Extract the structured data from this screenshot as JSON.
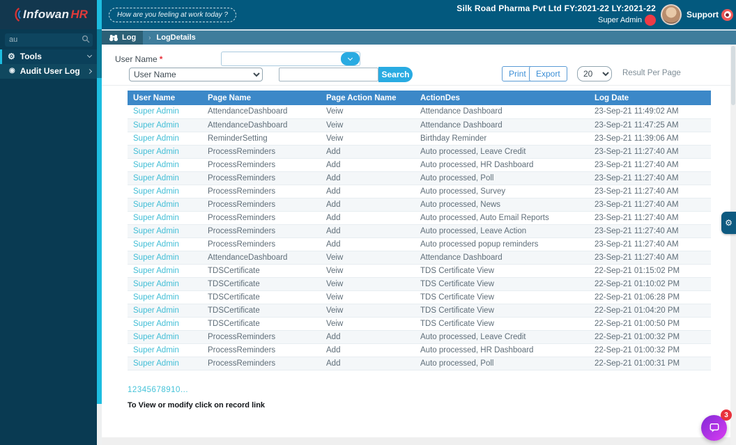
{
  "header": {
    "logo_main": "Infowan",
    "logo_accent": "HR",
    "feeling_button": "How are you feeling at work today ?",
    "company_line": "Silk Road Pharma Pvt Ltd FY:2021-22 LY:2021-22",
    "user_name": "Super Admin",
    "support_label": "Support"
  },
  "sidebar": {
    "search_value": "au",
    "tools_label": "Tools",
    "audit_label": "Audit User Log"
  },
  "breadcrumb": {
    "root": "Log",
    "current": "LogDetails"
  },
  "filters": {
    "user_name_label": "User Name",
    "required_mark": "*",
    "search_by_selected": "User Name",
    "search_button": "Search",
    "print_button": "Print",
    "export_button": "Export",
    "page_size": "20",
    "result_per_page_label": "Result Per Page"
  },
  "table": {
    "columns": [
      "User Name",
      "Page Name",
      "Page Action Name",
      "ActionDes",
      "Log Date"
    ],
    "rows": [
      [
        "Super Admin",
        "AttendanceDashboard",
        "Veiw",
        "Attendance Dashboard",
        "23-Sep-21 11:49:02 AM"
      ],
      [
        "Super Admin",
        "AttendanceDashboard",
        "Veiw",
        "Attendance Dashboard",
        "23-Sep-21 11:47:25 AM"
      ],
      [
        "Super Admin",
        "ReminderSetting",
        "Veiw",
        "Birthday Reminder",
        "23-Sep-21 11:39:06 AM"
      ],
      [
        "Super Admin",
        "ProcessReminders",
        "Add",
        "Auto processed, Leave Credit",
        "23-Sep-21 11:27:40 AM"
      ],
      [
        "Super Admin",
        "ProcessReminders",
        "Add",
        "Auto processed, HR Dashboard",
        "23-Sep-21 11:27:40 AM"
      ],
      [
        "Super Admin",
        "ProcessReminders",
        "Add",
        "Auto processed, Poll",
        "23-Sep-21 11:27:40 AM"
      ],
      [
        "Super Admin",
        "ProcessReminders",
        "Add",
        "Auto processed, Survey",
        "23-Sep-21 11:27:40 AM"
      ],
      [
        "Super Admin",
        "ProcessReminders",
        "Add",
        "Auto processed, News",
        "23-Sep-21 11:27:40 AM"
      ],
      [
        "Super Admin",
        "ProcessReminders",
        "Add",
        "Auto processed, Auto Email Reports",
        "23-Sep-21 11:27:40 AM"
      ],
      [
        "Super Admin",
        "ProcessReminders",
        "Add",
        "Auto processed, Leave Action",
        "23-Sep-21 11:27:40 AM"
      ],
      [
        "Super Admin",
        "ProcessReminders",
        "Add",
        "Auto processed popup reminders",
        "23-Sep-21 11:27:40 AM"
      ],
      [
        "Super Admin",
        "AttendanceDashboard",
        "Veiw",
        "Attendance Dashboard",
        "23-Sep-21 11:27:40 AM"
      ],
      [
        "Super Admin",
        "TDSCertificate",
        "Veiw",
        "TDS Certificate View",
        "22-Sep-21 01:15:02 PM"
      ],
      [
        "Super Admin",
        "TDSCertificate",
        "Veiw",
        "TDS Certificate View",
        "22-Sep-21 01:10:02 PM"
      ],
      [
        "Super Admin",
        "TDSCertificate",
        "Veiw",
        "TDS Certificate View",
        "22-Sep-21 01:06:28 PM"
      ],
      [
        "Super Admin",
        "TDSCertificate",
        "Veiw",
        "TDS Certificate View",
        "22-Sep-21 01:04:20 PM"
      ],
      [
        "Super Admin",
        "TDSCertificate",
        "Veiw",
        "TDS Certificate View",
        "22-Sep-21 01:00:50 PM"
      ],
      [
        "Super Admin",
        "ProcessReminders",
        "Add",
        "Auto processed, Leave Credit",
        "22-Sep-21 01:00:32 PM"
      ],
      [
        "Super Admin",
        "ProcessReminders",
        "Add",
        "Auto processed, HR Dashboard",
        "22-Sep-21 01:00:32 PM"
      ],
      [
        "Super Admin",
        "ProcessReminders",
        "Add",
        "Auto processed, Poll",
        "22-Sep-21 01:00:31 PM"
      ]
    ]
  },
  "pagination": {
    "pages": [
      "1",
      "2",
      "3",
      "4",
      "5",
      "6",
      "7",
      "8",
      "9",
      "10",
      "..."
    ]
  },
  "footer_note": "To View or modify click on record link",
  "chat": {
    "badge": "3"
  },
  "icons": {
    "gear": "⚙",
    "audit_target": "◉"
  },
  "colors": {
    "topbar": "#03597e",
    "sidebar": "#093a52",
    "crumb_bar": "#3f7d9c",
    "table_header": "#3c88c8",
    "accent_cyan": "#1dbde0",
    "primary_button": "#29abe2",
    "link": "#41bed6",
    "alert_red": "#e8323c",
    "chat_purple": "#b02fe6"
  }
}
